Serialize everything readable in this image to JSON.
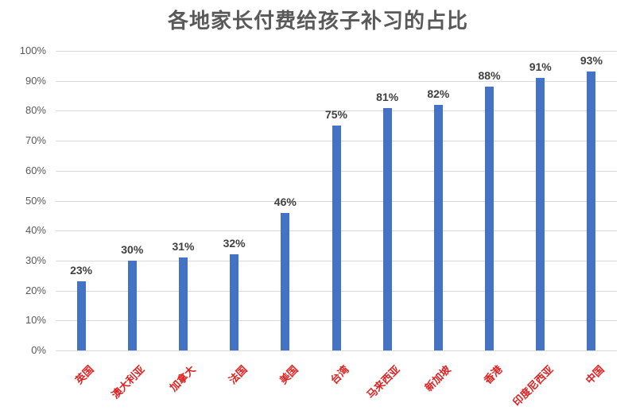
{
  "chart_data": {
    "type": "bar",
    "title": "各地家长付费给孩子补习的占比",
    "xlabel": "",
    "ylabel": "",
    "categories": [
      "英国",
      "澳大利亚",
      "加拿大",
      "法国",
      "美国",
      "台湾",
      "马来西亚",
      "新加坡",
      "香港",
      "印度尼西亚",
      "中国"
    ],
    "values": [
      23,
      30,
      31,
      32,
      46,
      75,
      81,
      82,
      88,
      91,
      93
    ],
    "value_labels": [
      "23%",
      "30%",
      "31%",
      "32%",
      "46%",
      "75%",
      "81%",
      "82%",
      "88%",
      "91%",
      "93%"
    ],
    "ylim": [
      0,
      100
    ],
    "yticks": [
      "0%",
      "10%",
      "20%",
      "30%",
      "40%",
      "50%",
      "60%",
      "70%",
      "80%",
      "90%",
      "100%"
    ],
    "grid": true,
    "legend": "none",
    "colors": {
      "bar": "#4472c4",
      "xlabel": "#e02020",
      "title": "#595959",
      "grid": "#d9d9d9"
    }
  }
}
